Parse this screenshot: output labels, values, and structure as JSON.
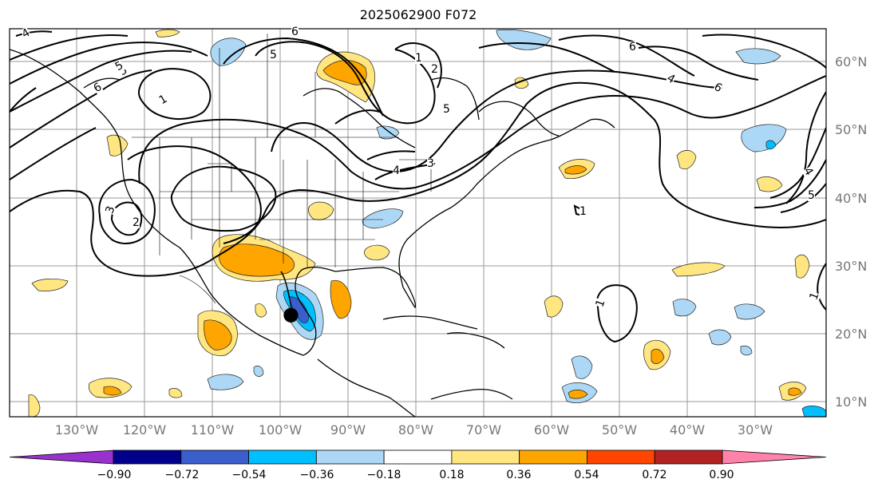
{
  "title": "2025062900 F072",
  "lat_labels": [
    "60°N",
    "50°N",
    "40°N",
    "30°N",
    "20°N",
    "10°N"
  ],
  "lon_labels": [
    "130°W",
    "120°W",
    "110°W",
    "100°W",
    "90°W",
    "80°W",
    "70°W",
    "60°W",
    "50°W",
    "40°W",
    "30°W"
  ],
  "colorbar": {
    "ticks": [
      "−0.90",
      "−0.72",
      "−0.54",
      "−0.36",
      "−0.18",
      "0.18",
      "0.36",
      "0.54",
      "0.72",
      "0.90"
    ],
    "colors": [
      "#9932cc",
      "#00008b",
      "#3a5fcd",
      "#00bfff",
      "#add8f5",
      "#ffffff",
      "#ffe680",
      "#ffa500",
      "#ff4500",
      "#b22222",
      "#ff82ab"
    ]
  },
  "contour_labels": [
    "4",
    "5",
    "6",
    "1",
    "5",
    "6",
    "1",
    "2",
    "3",
    "3",
    "4",
    "5",
    "6",
    "1",
    "2",
    "4",
    "5",
    "1",
    "1",
    "5",
    "4",
    "6"
  ],
  "storm_marker": {
    "symbol": "●"
  }
}
